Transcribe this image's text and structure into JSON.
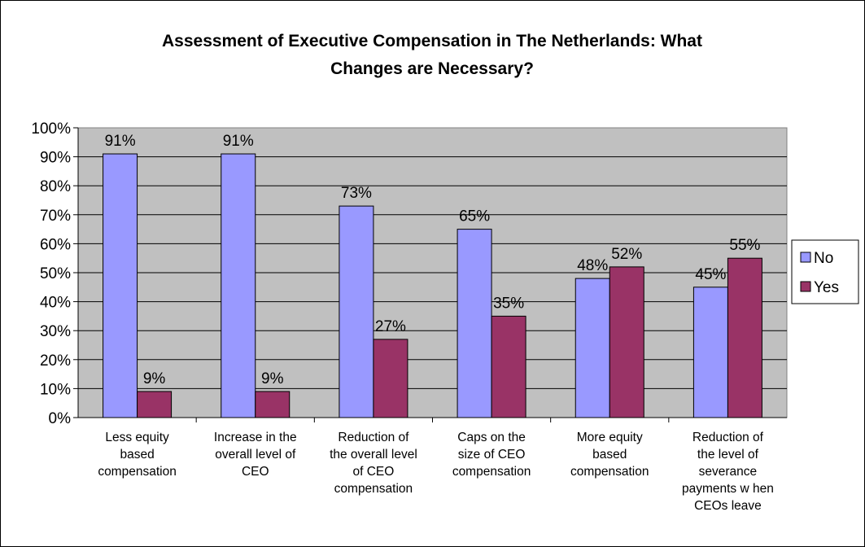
{
  "chart_data": {
    "type": "bar",
    "title": "Assessment of Executive Compensation in The Netherlands: What Changes are Necessary?",
    "title_lines": [
      "Assessment of Executive Compensation in The Netherlands: What",
      "Changes are Necessary?"
    ],
    "categories": [
      [
        "Less equity",
        "based",
        "compensation"
      ],
      [
        "Increase in the",
        "overall level of",
        "CEO"
      ],
      [
        "Reduction of",
        "the overall level",
        "of CEO",
        "compensation"
      ],
      [
        "Caps on the",
        "size of CEO",
        "compensation"
      ],
      [
        "More equity",
        "based",
        "compensation"
      ],
      [
        "Reduction of",
        "the level of",
        "severance",
        "payments w hen",
        "CEOs leave"
      ]
    ],
    "series": [
      {
        "name": "No",
        "values": [
          91,
          91,
          73,
          65,
          48,
          45
        ],
        "labels": [
          "91%",
          "91%",
          "73%",
          "65%",
          "48%",
          "45%"
        ],
        "color": "#9999ff"
      },
      {
        "name": "Yes",
        "values": [
          9,
          9,
          27,
          35,
          52,
          55
        ],
        "labels": [
          "9%",
          "9%",
          "27%",
          "35%",
          "52%",
          "55%"
        ],
        "color": "#993366"
      }
    ],
    "ylim": [
      0,
      100
    ],
    "yticks": [
      "0%",
      "10%",
      "20%",
      "30%",
      "40%",
      "50%",
      "60%",
      "70%",
      "80%",
      "90%",
      "100%"
    ],
    "grid": true,
    "plot_background": "#c0c0c0",
    "legend_position": "right"
  }
}
